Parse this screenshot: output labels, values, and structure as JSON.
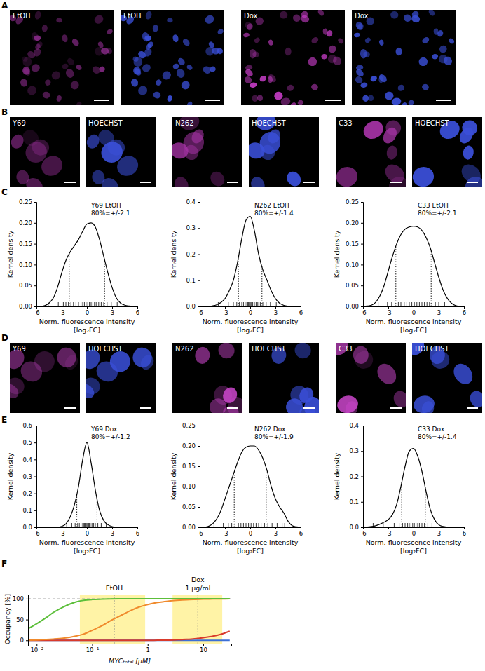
{
  "panel_labels": [
    "A",
    "B",
    "C",
    "D",
    "E",
    "F"
  ],
  "images": {
    "A": [
      {
        "label": "EtOH",
        "color": "#9a309a"
      },
      {
        "label": "EtOH",
        "color": "#3a4fd8"
      },
      {
        "label": "Dox",
        "color": "#d040d0"
      },
      {
        "label": "Dox",
        "color": "#3a4fd8"
      }
    ],
    "B": [
      {
        "label": "Y69",
        "color": "#a834a8"
      },
      {
        "label": "HOECHST",
        "color": "#3a4fd8"
      },
      {
        "label": "N262",
        "color": "#a834a8"
      },
      {
        "label": "HOECHST",
        "color": "#3a4fd8"
      },
      {
        "label": "C33",
        "color": "#a834a8"
      },
      {
        "label": "HOECHST",
        "color": "#3a4fd8"
      }
    ],
    "D": [
      {
        "label": "Y69",
        "color": "#d048d0"
      },
      {
        "label": "HOECHST",
        "color": "#3a4fd8"
      },
      {
        "label": "N262",
        "color": "#d048d0"
      },
      {
        "label": "HOECHST",
        "color": "#3a4fd8"
      },
      {
        "label": "C33",
        "color": "#d048d0"
      },
      {
        "label": "HOECHST",
        "color": "#3a4fd8"
      }
    ]
  },
  "chart_data": [
    {
      "type": "line",
      "title": "Y69 EtOH",
      "annotation": "80%=+/-2.1",
      "interval": [
        -2.1,
        2.1
      ],
      "x_label": [
        "Norm. fluorescence intensity",
        "[log₂FC]"
      ],
      "y_label": "Kernel density",
      "color": "#000000",
      "x": [
        -6,
        -5.5,
        -5,
        -4.5,
        -4,
        -3.5,
        -3,
        -2.5,
        -2,
        -1.5,
        -1,
        -0.5,
        0,
        0.5,
        1,
        1.5,
        2,
        2.5,
        3,
        3.5,
        4,
        4.5,
        5,
        5.5,
        6
      ],
      "values": [
        0,
        0,
        0.002,
        0.008,
        0.02,
        0.045,
        0.08,
        0.11,
        0.13,
        0.145,
        0.16,
        0.18,
        0.197,
        0.2,
        0.19,
        0.16,
        0.12,
        0.08,
        0.045,
        0.02,
        0.008,
        0.003,
        0.001,
        0,
        0
      ],
      "rug": [
        -4.6,
        -3.4,
        -2.8,
        -2.5,
        -2.2,
        -1.9,
        -1.6,
        -1.3,
        -1.0,
        -0.7,
        -0.5,
        -0.3,
        -0.1,
        0.1,
        0.3,
        0.5,
        0.7,
        0.9,
        1.1,
        1.4,
        1.7,
        2.0,
        2.4,
        2.9,
        3.6
      ],
      "xlim": [
        -6,
        6
      ],
      "xticks": [
        -6,
        -3,
        0,
        3,
        6
      ],
      "ylim": [
        0,
        0.25
      ],
      "yticks": [
        {
          "value": 0,
          "label": "0.00"
        },
        0.05,
        {
          "value": 0.1,
          "label": "0.10"
        },
        0.15,
        {
          "value": 0.2,
          "label": "0.20"
        },
        0.25
      ]
    },
    {
      "type": "line",
      "title": "N262 EtOH",
      "annotation": "80%=+/-1.4",
      "interval": [
        -1.4,
        1.4
      ],
      "x_label": [
        "Norm. fluorescence intensity",
        "[log₂FC]"
      ],
      "y_label": "Kernel density",
      "color": "#000000",
      "x": [
        -6,
        -5.5,
        -5,
        -4.5,
        -4,
        -3.5,
        -3,
        -2.5,
        -2,
        -1.5,
        -1,
        -0.5,
        0,
        0.5,
        1,
        1.5,
        2,
        2.5,
        3,
        3.5,
        4,
        4.5,
        5,
        5.5,
        6
      ],
      "values": [
        0,
        0,
        0,
        0.002,
        0.006,
        0.015,
        0.03,
        0.06,
        0.1,
        0.17,
        0.26,
        0.33,
        0.345,
        0.29,
        0.2,
        0.14,
        0.1,
        0.06,
        0.03,
        0.012,
        0.004,
        0.001,
        0,
        0,
        0
      ],
      "rug": [
        -3.8,
        -2.6,
        -2.0,
        -1.6,
        -1.3,
        -1.0,
        -0.8,
        -0.6,
        -0.4,
        -0.3,
        -0.2,
        -0.1,
        0,
        0.1,
        0.2,
        0.3,
        0.5,
        0.7,
        0.9,
        1.2,
        1.5,
        1.9,
        2.4,
        3.1
      ],
      "xlim": [
        -6,
        6
      ],
      "xticks": [
        -6,
        -3,
        0,
        3,
        6
      ],
      "ylim": [
        0,
        0.4
      ],
      "yticks": [
        {
          "value": 0,
          "label": "0.0"
        },
        0.1,
        0.2,
        0.3,
        0.4
      ]
    },
    {
      "type": "line",
      "title": "C33 EtOH",
      "annotation": "80%=+/-2.1",
      "interval": [
        -2.1,
        2.1
      ],
      "x_label": [
        "Norm. fluorescence intensity",
        "[log₂FC]"
      ],
      "y_label": "Kernel density",
      "color": "#000000",
      "x": [
        -6,
        -5.5,
        -5,
        -4.5,
        -4,
        -3.5,
        -3,
        -2.5,
        -2,
        -1.5,
        -1,
        -0.5,
        0,
        0.5,
        1,
        1.5,
        2,
        2.5,
        3,
        3.5,
        4,
        4.5,
        5,
        5.5,
        6
      ],
      "values": [
        0,
        0.001,
        0.003,
        0.01,
        0.025,
        0.05,
        0.085,
        0.12,
        0.15,
        0.172,
        0.185,
        0.19,
        0.192,
        0.19,
        0.182,
        0.165,
        0.14,
        0.105,
        0.07,
        0.04,
        0.02,
        0.008,
        0.002,
        0,
        0
      ],
      "rug": [
        -4.2,
        -3.1,
        -2.6,
        -2.2,
        -1.8,
        -1.5,
        -1.1,
        -0.8,
        -0.5,
        -0.2,
        0.1,
        0.4,
        0.7,
        1.0,
        1.3,
        1.6,
        1.9,
        2.2,
        2.6,
        3.0,
        3.7
      ],
      "xlim": [
        -6,
        6
      ],
      "xticks": [
        -6,
        -3,
        0,
        3,
        6
      ],
      "ylim": [
        0,
        0.25
      ],
      "yticks": [
        {
          "value": 0,
          "label": "0.00"
        },
        0.05,
        {
          "value": 0.1,
          "label": "0.10"
        },
        0.15,
        {
          "value": 0.2,
          "label": "0.20"
        },
        0.25
      ]
    },
    {
      "type": "line",
      "title": "Y69 Dox",
      "annotation": "80%=+/-1.2",
      "interval": [
        -1.2,
        1.2
      ],
      "x_label": [
        "Norm. fluorescence intensity",
        "[log₂FC]"
      ],
      "y_label": "Kernel density",
      "color": "#000000",
      "x": [
        -6,
        -5.5,
        -5,
        -4.5,
        -4,
        -3.5,
        -3,
        -2.5,
        -2,
        -1.5,
        -1,
        -0.5,
        0,
        0.5,
        1,
        1.5,
        2,
        2.5,
        3,
        3.5,
        4,
        4.5,
        5,
        5.5,
        6
      ],
      "values": [
        0,
        0,
        0,
        0,
        0,
        0,
        0.005,
        0.02,
        0.06,
        0.13,
        0.24,
        0.4,
        0.5,
        0.38,
        0.22,
        0.1,
        0.04,
        0.015,
        0.004,
        0,
        0,
        0,
        0,
        0,
        0
      ],
      "rug": [
        -2.4,
        -1.8,
        -1.4,
        -1.1,
        -0.9,
        -0.7,
        -0.5,
        -0.4,
        -0.3,
        -0.2,
        -0.1,
        0,
        0.1,
        0.2,
        0.3,
        0.4,
        0.6,
        0.8,
        1.0,
        1.3,
        1.7,
        2.3
      ],
      "xlim": [
        -6,
        6
      ],
      "xticks": [
        -6,
        -3,
        0,
        3,
        6
      ],
      "ylim": [
        0,
        0.6
      ],
      "yticks": [
        {
          "value": 0,
          "label": "0.0"
        },
        0.1,
        0.2,
        0.3,
        0.4,
        0.5,
        0.6
      ]
    },
    {
      "type": "line",
      "title": "N262 Dox",
      "annotation": "80%=+/-1.9",
      "interval": [
        -1.9,
        1.9
      ],
      "x_label": [
        "Norm. fluorescence intensity",
        "[log₂FC]"
      ],
      "y_label": "Kernel density",
      "color": "#000000",
      "x": [
        -6,
        -5.5,
        -5,
        -4.5,
        -4,
        -3.5,
        -3,
        -2.5,
        -2,
        -1.5,
        -1,
        -0.5,
        0,
        0.5,
        1,
        1.5,
        2,
        2.5,
        3,
        3.5,
        4,
        4.5,
        5,
        5.5,
        6
      ],
      "values": [
        0,
        0,
        0.002,
        0.008,
        0.02,
        0.04,
        0.07,
        0.1,
        0.13,
        0.16,
        0.185,
        0.197,
        0.2,
        0.2,
        0.19,
        0.17,
        0.14,
        0.1,
        0.07,
        0.05,
        0.035,
        0.015,
        0.004,
        0.001,
        0
      ],
      "rug": [
        -4.3,
        -3.2,
        -2.6,
        -2.2,
        -1.8,
        -1.4,
        -1.1,
        -0.8,
        -0.5,
        -0.2,
        0.1,
        0.4,
        0.7,
        1.0,
        1.3,
        1.7,
        2.1,
        2.6,
        3.2,
        3.8,
        4.1
      ],
      "xlim": [
        -6,
        6
      ],
      "xticks": [
        -6,
        -3,
        0,
        3,
        6
      ],
      "ylim": [
        0,
        0.25
      ],
      "yticks": [
        {
          "value": 0,
          "label": "0.00"
        },
        0.05,
        {
          "value": 0.1,
          "label": "0.10"
        },
        0.15,
        {
          "value": 0.2,
          "label": "0.20"
        },
        0.25
      ]
    },
    {
      "type": "line",
      "title": "C33 Dox",
      "annotation": "80%=+/-1.4",
      "interval": [
        -1.4,
        1.4
      ],
      "x_label": [
        "Norm. fluorescence intensity",
        "[log₂FC]"
      ],
      "y_label": "Kernel density",
      "color": "#000000",
      "x": [
        -6,
        -5.5,
        -5,
        -4.5,
        -4,
        -3.5,
        -3,
        -2.5,
        -2,
        -1.5,
        -1,
        -0.5,
        0,
        0.5,
        1,
        1.5,
        2,
        2.5,
        3,
        3.5,
        4,
        4.5,
        5,
        5.5,
        6
      ],
      "values": [
        0,
        0.001,
        0.003,
        0.006,
        0.012,
        0.02,
        0.03,
        0.05,
        0.09,
        0.16,
        0.24,
        0.3,
        0.31,
        0.28,
        0.22,
        0.14,
        0.07,
        0.03,
        0.01,
        0.003,
        0.001,
        0,
        0,
        0,
        0
      ],
      "rug": [
        -4.8,
        -3.6,
        -2.3,
        -1.7,
        -1.3,
        -1.0,
        -0.7,
        -0.5,
        -0.3,
        -0.1,
        0.1,
        0.3,
        0.5,
        0.7,
        1.0,
        1.3,
        1.7,
        2.2
      ],
      "xlim": [
        -6,
        6
      ],
      "xticks": [
        -6,
        -3,
        0,
        3,
        6
      ],
      "ylim": [
        0,
        0.4
      ],
      "yticks": [
        {
          "value": 0,
          "label": "0.0"
        },
        0.1,
        0.2,
        0.3,
        0.4
      ]
    },
    {
      "type": "line",
      "log": "x",
      "x_label": "MYCₜₒₜₐₗ [µM]",
      "y_label": "Occupancy [%]",
      "x": [
        0.007,
        0.01,
        0.015,
        0.02,
        0.03,
        0.05,
        0.07,
        0.1,
        0.15,
        0.2,
        0.3,
        0.5,
        0.7,
        1,
        1.5,
        2,
        3,
        5,
        7,
        10,
        15,
        20,
        30
      ],
      "series": [
        {
          "color": "#3b6fd6",
          "values": [
            0,
            0,
            0,
            0,
            0,
            0,
            0,
            0,
            0,
            0,
            0,
            0,
            0,
            0,
            0,
            0,
            0,
            0,
            0,
            0,
            0,
            0,
            0
          ]
        },
        {
          "color": "#d93a2b",
          "values": [
            0,
            0,
            0,
            0,
            0,
            0,
            0,
            0,
            0,
            0,
            0,
            0,
            0,
            0,
            0.3,
            0.5,
            1,
            2.5,
            4,
            6.5,
            10,
            14,
            22
          ]
        },
        {
          "color": "#f08a2c",
          "values": [
            0.5,
            1,
            2,
            3,
            5,
            10,
            15,
            24,
            35,
            45,
            57,
            72,
            80,
            86,
            91,
            93,
            95.5,
            97.5,
            98.3,
            99,
            99.3,
            99.5,
            99.7
          ]
        },
        {
          "color": "#5cbf3a",
          "values": [
            28,
            40,
            55,
            67,
            80,
            92,
            96,
            98,
            99,
            99.5,
            99.7,
            99.8,
            99.9,
            100,
            100,
            100,
            100,
            100,
            100,
            100,
            100,
            100,
            100
          ]
        }
      ],
      "bands": [
        {
          "label": "EtOH",
          "range": [
            0.06,
            0.9
          ],
          "line": 0.25,
          "color": "#fff3a6"
        },
        {
          "label": [
            "Dox",
            "1 µg/ml"
          ],
          "range": [
            2.8,
            22
          ],
          "line": 8,
          "color": "#fff3a6"
        }
      ],
      "reference": 100,
      "xlim": [
        0.007,
        32
      ],
      "xticks": [
        {
          "value": 0.01,
          "label": "10⁻²"
        },
        {
          "value": 0.1,
          "label": "10⁻¹"
        },
        1,
        10
      ],
      "ylim": [
        -8,
        110
      ],
      "yticks": [
        0,
        50,
        100
      ]
    }
  ]
}
